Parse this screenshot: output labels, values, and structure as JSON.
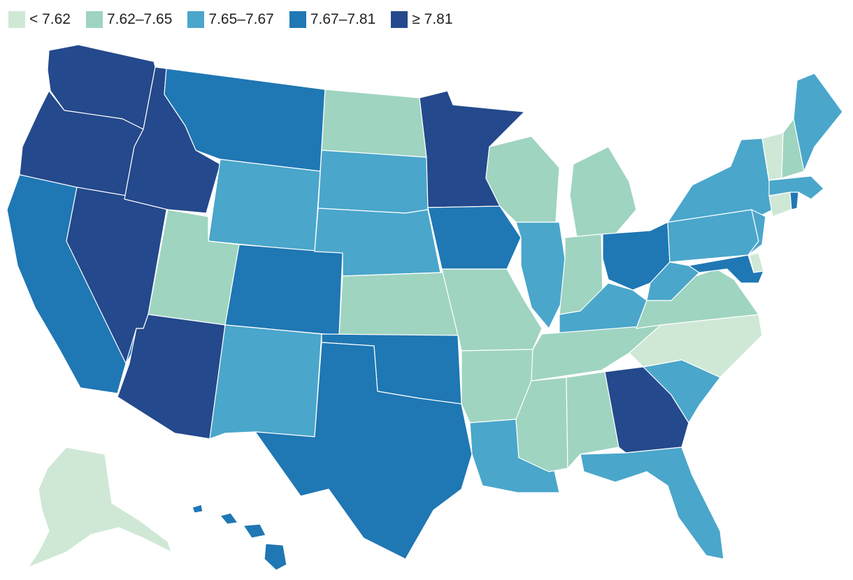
{
  "legend": {
    "items": [
      {
        "label": "< 7.62",
        "color": "#cfe8d6"
      },
      {
        "label": "7.62–7.65",
        "color": "#9fd4c0"
      },
      {
        "label": "7.65–7.67",
        "color": "#4aa6cb"
      },
      {
        "label": "7.67–7.81",
        "color": "#1f77b4"
      },
      {
        "label": "≥ 7.81",
        "color": "#24498c"
      }
    ]
  },
  "map": {
    "type": "choropleth",
    "region": "United States",
    "states": [
      {
        "id": "WA",
        "class": 4
      },
      {
        "id": "OR",
        "class": 4
      },
      {
        "id": "CA",
        "class": 3
      },
      {
        "id": "NV",
        "class": 4
      },
      {
        "id": "ID",
        "class": 4
      },
      {
        "id": "MT",
        "class": 3
      },
      {
        "id": "WY",
        "class": 2
      },
      {
        "id": "UT",
        "class": 1
      },
      {
        "id": "AZ",
        "class": 4
      },
      {
        "id": "CO",
        "class": 3
      },
      {
        "id": "NM",
        "class": 2
      },
      {
        "id": "ND",
        "class": 1
      },
      {
        "id": "SD",
        "class": 2
      },
      {
        "id": "NE",
        "class": 2
      },
      {
        "id": "KS",
        "class": 1
      },
      {
        "id": "OK",
        "class": 3
      },
      {
        "id": "TX",
        "class": 3
      },
      {
        "id": "MN",
        "class": 4
      },
      {
        "id": "IA",
        "class": 3
      },
      {
        "id": "MO",
        "class": 1
      },
      {
        "id": "AR",
        "class": 1
      },
      {
        "id": "LA",
        "class": 2
      },
      {
        "id": "WI",
        "class": 1
      },
      {
        "id": "IL",
        "class": 2
      },
      {
        "id": "MI",
        "class": 1
      },
      {
        "id": "IN",
        "class": 1
      },
      {
        "id": "OH",
        "class": 3
      },
      {
        "id": "KY",
        "class": 2
      },
      {
        "id": "TN",
        "class": 1
      },
      {
        "id": "MS",
        "class": 1
      },
      {
        "id": "AL",
        "class": 1
      },
      {
        "id": "GA",
        "class": 4
      },
      {
        "id": "FL",
        "class": 2
      },
      {
        "id": "SC",
        "class": 2
      },
      {
        "id": "NC",
        "class": 0
      },
      {
        "id": "VA",
        "class": 1
      },
      {
        "id": "WV",
        "class": 2
      },
      {
        "id": "PA",
        "class": 2
      },
      {
        "id": "NY",
        "class": 2
      },
      {
        "id": "NJ",
        "class": 2
      },
      {
        "id": "DE",
        "class": 0
      },
      {
        "id": "MD",
        "class": 3
      },
      {
        "id": "CT",
        "class": 0
      },
      {
        "id": "RI",
        "class": 3
      },
      {
        "id": "MA",
        "class": 2
      },
      {
        "id": "VT",
        "class": 0
      },
      {
        "id": "NH",
        "class": 1
      },
      {
        "id": "ME",
        "class": 2
      },
      {
        "id": "AK",
        "class": 0
      },
      {
        "id": "HI",
        "class": 3
      }
    ]
  }
}
